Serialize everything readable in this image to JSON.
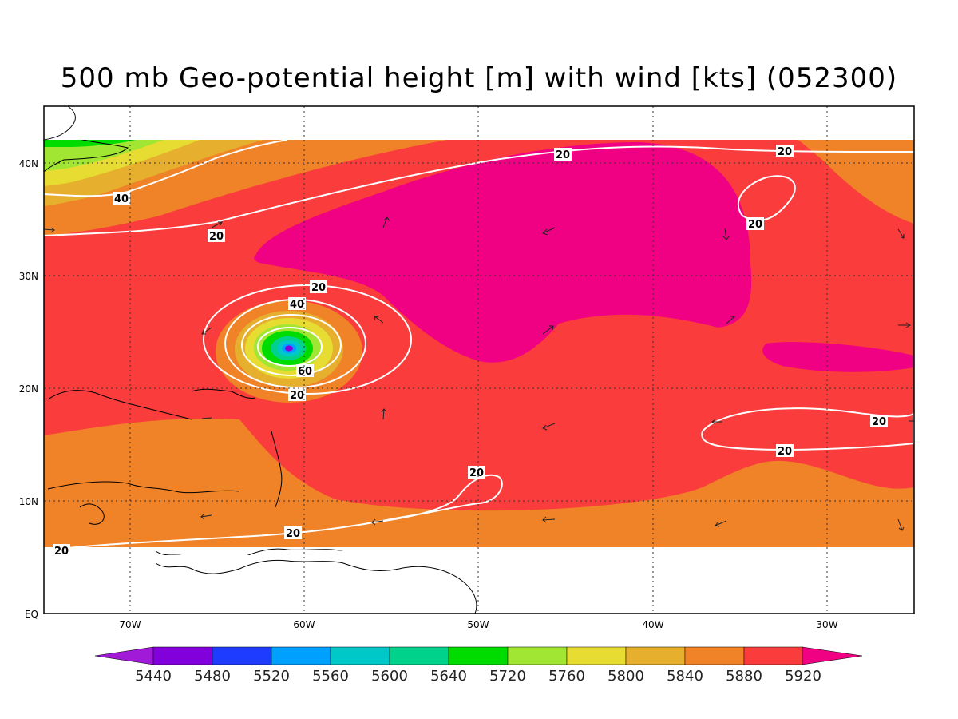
{
  "title": "500 mb Geo-potential height [m] with wind [kts] (052300)",
  "axes": {
    "lon_ticks": [
      "70W",
      "60W",
      "50W",
      "40W",
      "30W"
    ],
    "lat_ticks": [
      "EQ",
      "10N",
      "20N",
      "30N",
      "40N"
    ]
  },
  "colorbar": {
    "levels": [
      "5440",
      "5480",
      "5520",
      "5560",
      "5600",
      "5640",
      "5720",
      "5760",
      "5800",
      "5840",
      "5880",
      "5920"
    ],
    "colors": [
      "#a01ad8",
      "#8200dc",
      "#1e3cff",
      "#00a0ff",
      "#00c8c8",
      "#00d28c",
      "#00dc00",
      "#a0e632",
      "#e6dc32",
      "#e6af2d",
      "#f08228",
      "#fa3c3c",
      "#f00082"
    ]
  },
  "wind_contours": [
    "20",
    "40",
    "20",
    "20",
    "20",
    "40",
    "60",
    "20",
    "20",
    "20",
    "20",
    "20",
    "20"
  ]
}
